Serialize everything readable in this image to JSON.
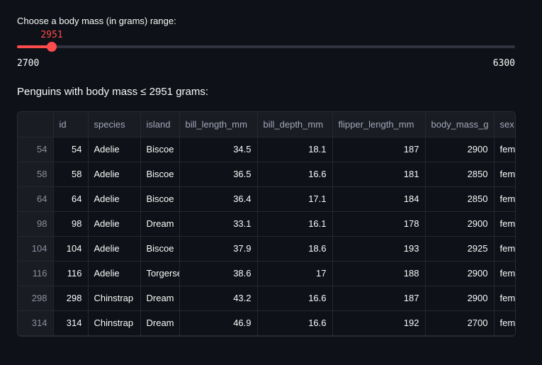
{
  "slider": {
    "label": "Choose a body mass (in grams) range:",
    "value": 2951,
    "value_text": "2951",
    "min": 2700,
    "max": 6300,
    "min_text": "2700",
    "max_text": "6300",
    "accent_color": "#ff4b4b"
  },
  "heading": "Penguins with body mass ≤ 2951 grams:",
  "table": {
    "columns": [
      "id",
      "species",
      "island",
      "bill_length_mm",
      "bill_depth_mm",
      "flipper_length_mm",
      "body_mass_g",
      "sex"
    ],
    "rows": [
      {
        "index": "54",
        "cells": [
          "54",
          "Adelie",
          "Biscoe",
          "34.5",
          "18.1",
          "187",
          "2900",
          "female"
        ]
      },
      {
        "index": "58",
        "cells": [
          "58",
          "Adelie",
          "Biscoe",
          "36.5",
          "16.6",
          "181",
          "2850",
          "female"
        ]
      },
      {
        "index": "64",
        "cells": [
          "64",
          "Adelie",
          "Biscoe",
          "36.4",
          "17.1",
          "184",
          "2850",
          "female"
        ]
      },
      {
        "index": "98",
        "cells": [
          "98",
          "Adelie",
          "Dream",
          "33.1",
          "16.1",
          "178",
          "2900",
          "female"
        ]
      },
      {
        "index": "104",
        "cells": [
          "104",
          "Adelie",
          "Biscoe",
          "37.9",
          "18.6",
          "193",
          "2925",
          "female"
        ]
      },
      {
        "index": "116",
        "cells": [
          "116",
          "Adelie",
          "Torgersen",
          "38.6",
          "17",
          "188",
          "2900",
          "female"
        ]
      },
      {
        "index": "298",
        "cells": [
          "298",
          "Chinstrap",
          "Dream",
          "43.2",
          "16.6",
          "187",
          "2900",
          "female"
        ]
      },
      {
        "index": "314",
        "cells": [
          "314",
          "Chinstrap",
          "Dream",
          "46.9",
          "16.6",
          "192",
          "2700",
          "female"
        ]
      }
    ]
  }
}
